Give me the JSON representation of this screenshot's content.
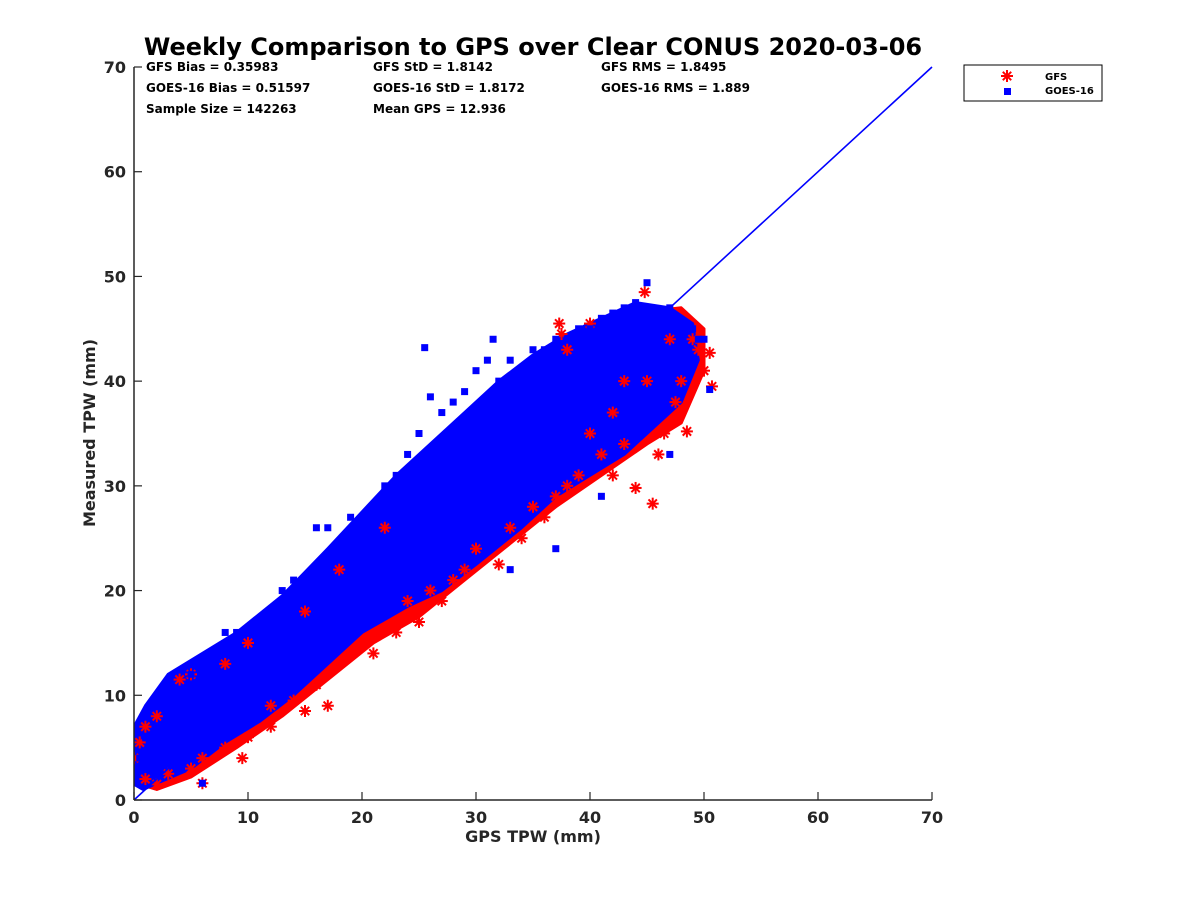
{
  "chart_data": {
    "type": "scatter",
    "title": "Weekly Comparison to GPS over Clear CONUS 2020-03-06",
    "xlabel": "GPS TPW (mm)",
    "ylabel": "Measured TPW (mm)",
    "xlim": [
      0,
      70
    ],
    "ylim": [
      0,
      70
    ],
    "xticks": [
      0,
      10,
      20,
      30,
      40,
      50,
      60,
      70
    ],
    "yticks": [
      0,
      10,
      20,
      30,
      40,
      50,
      60,
      70
    ],
    "grid": false,
    "legend_position": "outside-top-right",
    "stats": [
      [
        "GFS Bias = 0.35983",
        "GFS StD = 1.8142",
        "GFS RMS = 1.8495"
      ],
      [
        "GOES-16 Bias = 0.51597",
        "GOES-16 StD = 1.8172",
        "GOES-16 RMS = 1.889"
      ],
      [
        "Sample Size = 142263",
        "Mean GPS = 12.936",
        ""
      ]
    ],
    "series": [
      {
        "name": "GFS",
        "marker": "asterisk",
        "color": "#ff0000",
        "points": [
          [
            0,
            4
          ],
          [
            0.5,
            5.5
          ],
          [
            1,
            2
          ],
          [
            1,
            7
          ],
          [
            2,
            1.5
          ],
          [
            2,
            8
          ],
          [
            3,
            2.5
          ],
          [
            4,
            11.5
          ],
          [
            5,
            3
          ],
          [
            5,
            12
          ],
          [
            6,
            1.6
          ],
          [
            6,
            4
          ],
          [
            8,
            5
          ],
          [
            8,
            13
          ],
          [
            9.5,
            4
          ],
          [
            10,
            6
          ],
          [
            10,
            15
          ],
          [
            12,
            9
          ],
          [
            12,
            7
          ],
          [
            14,
            9.5
          ],
          [
            15,
            8.5
          ],
          [
            15,
            18
          ],
          [
            16,
            11
          ],
          [
            17,
            9
          ],
          [
            18,
            13
          ],
          [
            18,
            22
          ],
          [
            20,
            15
          ],
          [
            21,
            14
          ],
          [
            22,
            26
          ],
          [
            23,
            16
          ],
          [
            24,
            19
          ],
          [
            25,
            17
          ],
          [
            26,
            20
          ],
          [
            27,
            19
          ],
          [
            28,
            21
          ],
          [
            29,
            22
          ],
          [
            30,
            24
          ],
          [
            32,
            22.5
          ],
          [
            33,
            26
          ],
          [
            34,
            25
          ],
          [
            35,
            28
          ],
          [
            36,
            27
          ],
          [
            37,
            29
          ],
          [
            37.3,
            45.5
          ],
          [
            37.5,
            44.5
          ],
          [
            38,
            43
          ],
          [
            38,
            30
          ],
          [
            39,
            31
          ],
          [
            40,
            45.5
          ],
          [
            41,
            33
          ],
          [
            42,
            31
          ],
          [
            43,
            34
          ],
          [
            44,
            29.8
          ],
          [
            44.8,
            48.5
          ],
          [
            45,
            40
          ],
          [
            45.5,
            28.3
          ],
          [
            46,
            33
          ],
          [
            46.5,
            35
          ],
          [
            47,
            44
          ],
          [
            47.5,
            38
          ],
          [
            48,
            40
          ],
          [
            48.5,
            35.2
          ],
          [
            49,
            44
          ],
          [
            49.5,
            43
          ],
          [
            50,
            41
          ],
          [
            50.5,
            42.7
          ],
          [
            50.7,
            39.5
          ],
          [
            42,
            37
          ],
          [
            43,
            40
          ],
          [
            40,
            35
          ]
        ]
      },
      {
        "name": "GOES-16",
        "marker": "square",
        "color": "#0000ff",
        "points": [
          [
            0.5,
            4
          ],
          [
            1,
            6
          ],
          [
            1.5,
            3
          ],
          [
            2,
            7
          ],
          [
            3,
            9
          ],
          [
            4,
            10
          ],
          [
            5,
            12
          ],
          [
            6,
            1.6
          ],
          [
            6,
            8
          ],
          [
            7,
            14
          ],
          [
            8,
            16
          ],
          [
            9,
            16
          ],
          [
            10,
            13
          ],
          [
            11,
            17
          ],
          [
            12,
            18
          ],
          [
            13,
            20
          ],
          [
            14,
            21
          ],
          [
            16,
            26
          ],
          [
            17,
            26
          ],
          [
            18,
            24
          ],
          [
            19,
            27
          ],
          [
            20,
            25
          ],
          [
            21,
            28
          ],
          [
            22,
            30
          ],
          [
            23,
            31
          ],
          [
            24,
            33
          ],
          [
            25,
            35
          ],
          [
            25.5,
            43.2
          ],
          [
            26,
            38.5
          ],
          [
            27,
            37
          ],
          [
            28,
            38
          ],
          [
            29,
            39
          ],
          [
            30,
            41
          ],
          [
            31,
            42
          ],
          [
            31.5,
            44
          ],
          [
            32,
            40
          ],
          [
            33,
            42
          ],
          [
            34,
            41
          ],
          [
            35,
            43
          ],
          [
            36,
            43
          ],
          [
            37,
            44
          ],
          [
            38,
            44
          ],
          [
            39,
            45
          ],
          [
            40,
            45
          ],
          [
            41,
            46
          ],
          [
            42,
            46.5
          ],
          [
            43,
            47
          ],
          [
            44,
            47.5
          ],
          [
            45,
            49.4
          ],
          [
            46,
            46
          ],
          [
            47,
            47
          ],
          [
            48,
            45
          ],
          [
            49,
            45
          ],
          [
            49.5,
            44
          ],
          [
            50,
            44
          ],
          [
            50.5,
            39.2
          ],
          [
            47,
            33
          ],
          [
            41,
            29
          ],
          [
            30,
            29
          ],
          [
            35,
            31
          ],
          [
            36,
            38
          ],
          [
            25,
            22
          ],
          [
            20,
            18
          ],
          [
            15,
            12
          ],
          [
            10,
            8
          ],
          [
            5,
            5
          ],
          [
            3,
            4
          ],
          [
            37,
            24
          ],
          [
            33,
            22
          ],
          [
            38,
            33
          ],
          [
            42,
            35
          ],
          [
            44,
            38
          ],
          [
            46,
            40
          ],
          [
            48,
            42
          ],
          [
            28,
            26
          ]
        ]
      }
    ],
    "reference_line": {
      "from": [
        0,
        0
      ],
      "to": [
        70,
        70
      ],
      "color": "#0000ff"
    },
    "bands": [
      {
        "name": "GFS",
        "color": "#ff0000",
        "outline": [
          [
            0,
            2.5
          ],
          [
            0,
            6
          ],
          [
            1,
            8.5
          ],
          [
            4,
            12
          ],
          [
            8,
            14
          ],
          [
            12,
            17.5
          ],
          [
            16,
            22
          ],
          [
            20,
            27
          ],
          [
            24,
            31.5
          ],
          [
            28,
            35.5
          ],
          [
            32,
            39
          ],
          [
            36,
            42
          ],
          [
            40,
            44
          ],
          [
            44,
            46.5
          ],
          [
            48,
            47
          ],
          [
            50,
            45
          ],
          [
            50,
            41
          ],
          [
            48,
            36
          ],
          [
            45,
            34
          ],
          [
            41,
            31
          ],
          [
            37,
            28
          ],
          [
            33,
            24.5
          ],
          [
            29,
            21
          ],
          [
            25,
            17.5
          ],
          [
            21,
            15
          ],
          [
            17,
            11.5
          ],
          [
            13,
            8
          ],
          [
            9,
            5
          ],
          [
            5,
            2.2
          ],
          [
            2,
            1
          ],
          [
            0.5,
            1.5
          ]
        ]
      },
      {
        "name": "GOES-16",
        "color": "#0000ff",
        "outline": [
          [
            0,
            1.5
          ],
          [
            0,
            7
          ],
          [
            1,
            9
          ],
          [
            3,
            12
          ],
          [
            6,
            14
          ],
          [
            9,
            16
          ],
          [
            13,
            19.5
          ],
          [
            17,
            24
          ],
          [
            20,
            27.5
          ],
          [
            23,
            31
          ],
          [
            26,
            34
          ],
          [
            29,
            37
          ],
          [
            32,
            40
          ],
          [
            35,
            42.5
          ],
          [
            38,
            44.5
          ],
          [
            41,
            46
          ],
          [
            44,
            47.5
          ],
          [
            47,
            47
          ],
          [
            49,
            45.5
          ],
          [
            49.5,
            42
          ],
          [
            48,
            38
          ],
          [
            46,
            36
          ],
          [
            43,
            33
          ],
          [
            40,
            31
          ],
          [
            37,
            29
          ],
          [
            34,
            26
          ],
          [
            30,
            22.5
          ],
          [
            27,
            20
          ],
          [
            24,
            18.5
          ],
          [
            20,
            16
          ],
          [
            17,
            13
          ],
          [
            14,
            10
          ],
          [
            11,
            7.5
          ],
          [
            8,
            5.5
          ],
          [
            5,
            3
          ],
          [
            2,
            1.6
          ],
          [
            0.8,
            1
          ]
        ]
      }
    ]
  }
}
